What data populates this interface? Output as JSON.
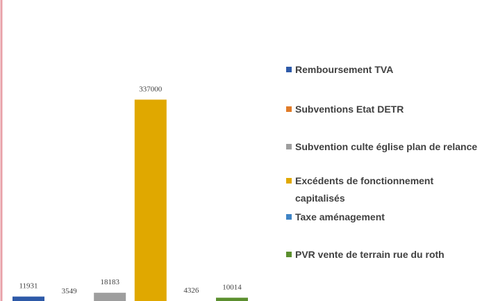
{
  "chart_data": {
    "type": "bar",
    "categories": [
      null
    ],
    "series": [
      {
        "name": "Remboursement TVA",
        "color": "#2e5aa8",
        "values": [
          11931
        ]
      },
      {
        "name": "Subventions Etat DETR",
        "color": "#e07b28",
        "values": [
          3549
        ]
      },
      {
        "name": "Subvention culte église plan de relance",
        "color": "#9e9e9e",
        "values": [
          18183
        ]
      },
      {
        "name": "Excédents de fonctionnement capitalisés",
        "color": "#e0a800",
        "values": [
          337000
        ]
      },
      {
        "name": "Taxe aménagement",
        "color": "#3f84c6",
        "values": [
          4326
        ]
      },
      {
        "name": "PVR vente de terrain rue du roth",
        "color": "#5b8f2e",
        "values": [
          10014
        ]
      }
    ],
    "ylim": [
      0,
      350000
    ]
  }
}
